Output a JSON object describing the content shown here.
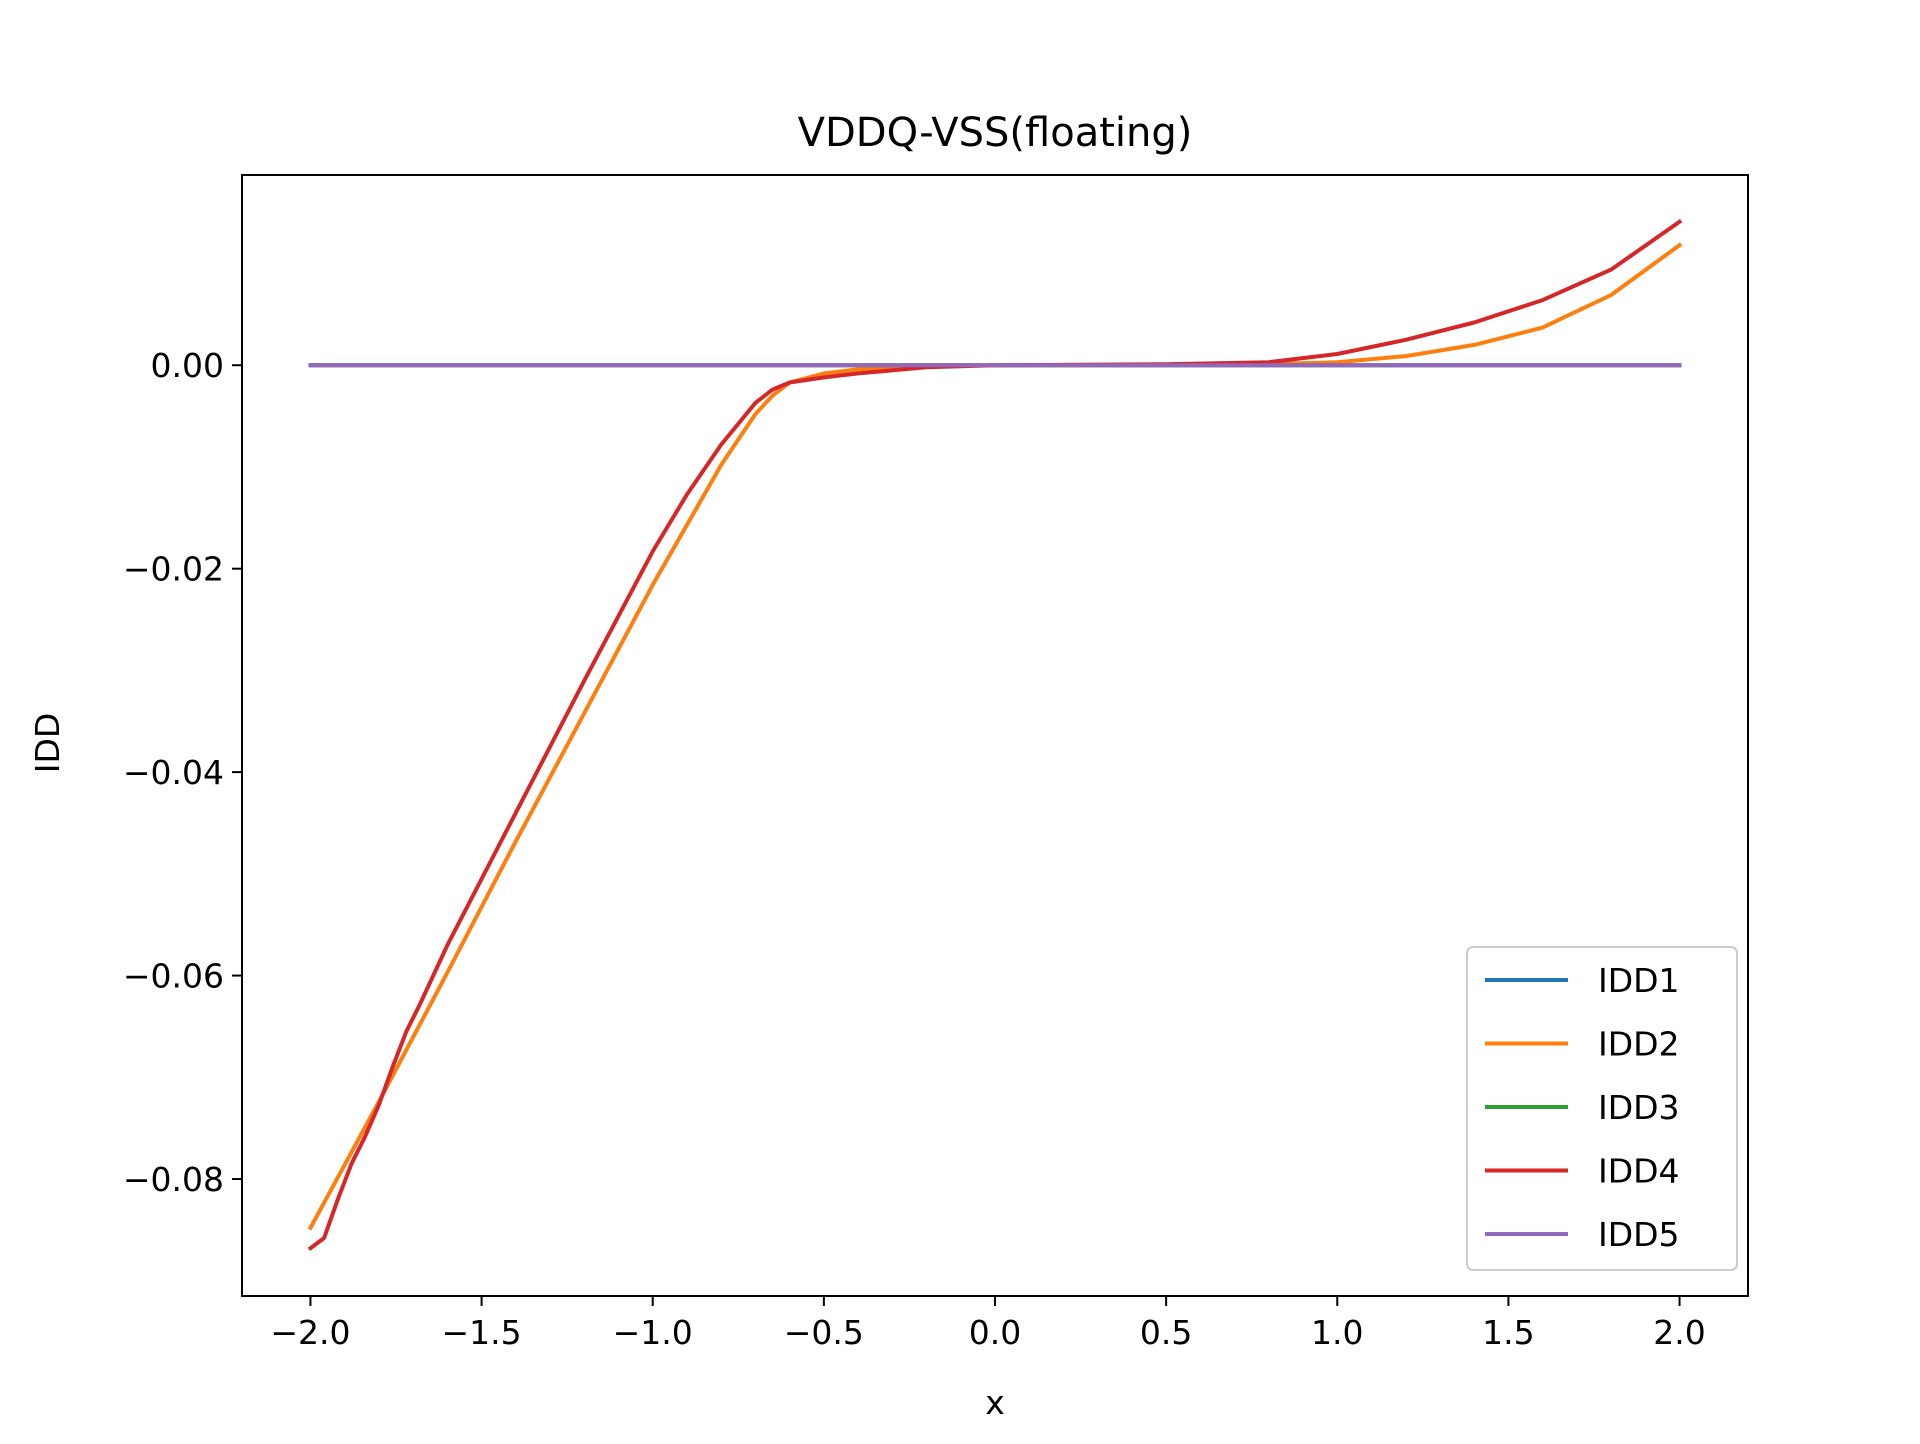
{
  "chart_data": {
    "type": "line",
    "title": "VDDQ-VSS(floating)",
    "xlabel": "x",
    "ylabel": "IDD",
    "xlim": [
      -2.2,
      2.2
    ],
    "ylim": [
      -0.0915,
      0.0187
    ],
    "x_ticks": [
      -2.0,
      -1.5,
      -1.0,
      -0.5,
      0.0,
      0.5,
      1.0,
      1.5,
      2.0
    ],
    "x_tick_labels": [
      "−2.0",
      "−1.5",
      "−1.0",
      "−0.5",
      "0.0",
      "0.5",
      "1.0",
      "1.5",
      "2.0"
    ],
    "y_ticks": [
      0.0,
      -0.02,
      -0.04,
      -0.06,
      -0.08
    ],
    "y_tick_labels": [
      "0.00",
      "−0.02",
      "−0.04",
      "−0.06",
      "−0.08"
    ],
    "grid": false,
    "legend_position": "lower right",
    "series": [
      {
        "name": "IDD1",
        "color": "#1f77b4",
        "x": [
          -2.0,
          2.0
        ],
        "y": [
          0.0,
          0.0
        ]
      },
      {
        "name": "IDD2",
        "color": "#ff7f0e",
        "x": [
          -2.0,
          -1.8,
          -1.6,
          -1.4,
          -1.2,
          -1.0,
          -0.9,
          -0.8,
          -0.7,
          -0.65,
          -0.6,
          -0.5,
          -0.4,
          -0.3,
          -0.2,
          0.0,
          0.5,
          0.8,
          1.0,
          1.2,
          1.4,
          1.6,
          1.8,
          2.0
        ],
        "y": [
          -0.0848,
          -0.0724,
          -0.0597,
          -0.0468,
          -0.0342,
          -0.0216,
          -0.0157,
          -0.0098,
          -0.0048,
          -0.003,
          -0.0017,
          -0.0008,
          -0.0004,
          -0.0002,
          -0.0001,
          0.0,
          0.0,
          0.0001,
          0.0003,
          0.0009,
          0.002,
          0.0037,
          0.0069,
          0.0118
        ]
      },
      {
        "name": "IDD3",
        "color": "#2ca02c",
        "x": [
          -2.0,
          2.0
        ],
        "y": [
          0.0,
          0.0
        ]
      },
      {
        "name": "IDD4",
        "color": "#d62728",
        "x": [
          -2.0,
          -1.96,
          -1.92,
          -1.88,
          -1.84,
          -1.8,
          -1.76,
          -1.72,
          -1.68,
          -1.6,
          -1.4,
          -1.2,
          -1.0,
          -0.9,
          -0.8,
          -0.7,
          -0.65,
          -0.6,
          -0.5,
          -0.4,
          -0.2,
          0.0,
          0.5,
          0.8,
          1.0,
          1.2,
          1.4,
          1.6,
          1.8,
          2.0
        ],
        "y": [
          -0.0868,
          -0.0858,
          -0.082,
          -0.0785,
          -0.0758,
          -0.0727,
          -0.069,
          -0.0655,
          -0.0628,
          -0.057,
          -0.044,
          -0.031,
          -0.0183,
          -0.0127,
          -0.0078,
          -0.0037,
          -0.0024,
          -0.0017,
          -0.0012,
          -0.0008,
          -0.0002,
          0.0,
          0.0001,
          0.0003,
          0.0011,
          0.0025,
          0.0042,
          0.0064,
          0.0094,
          0.0141
        ]
      },
      {
        "name": "IDD5",
        "color": "#9467bd",
        "x": [
          -2.0,
          2.0
        ],
        "y": [
          0.0,
          0.0
        ]
      }
    ]
  }
}
